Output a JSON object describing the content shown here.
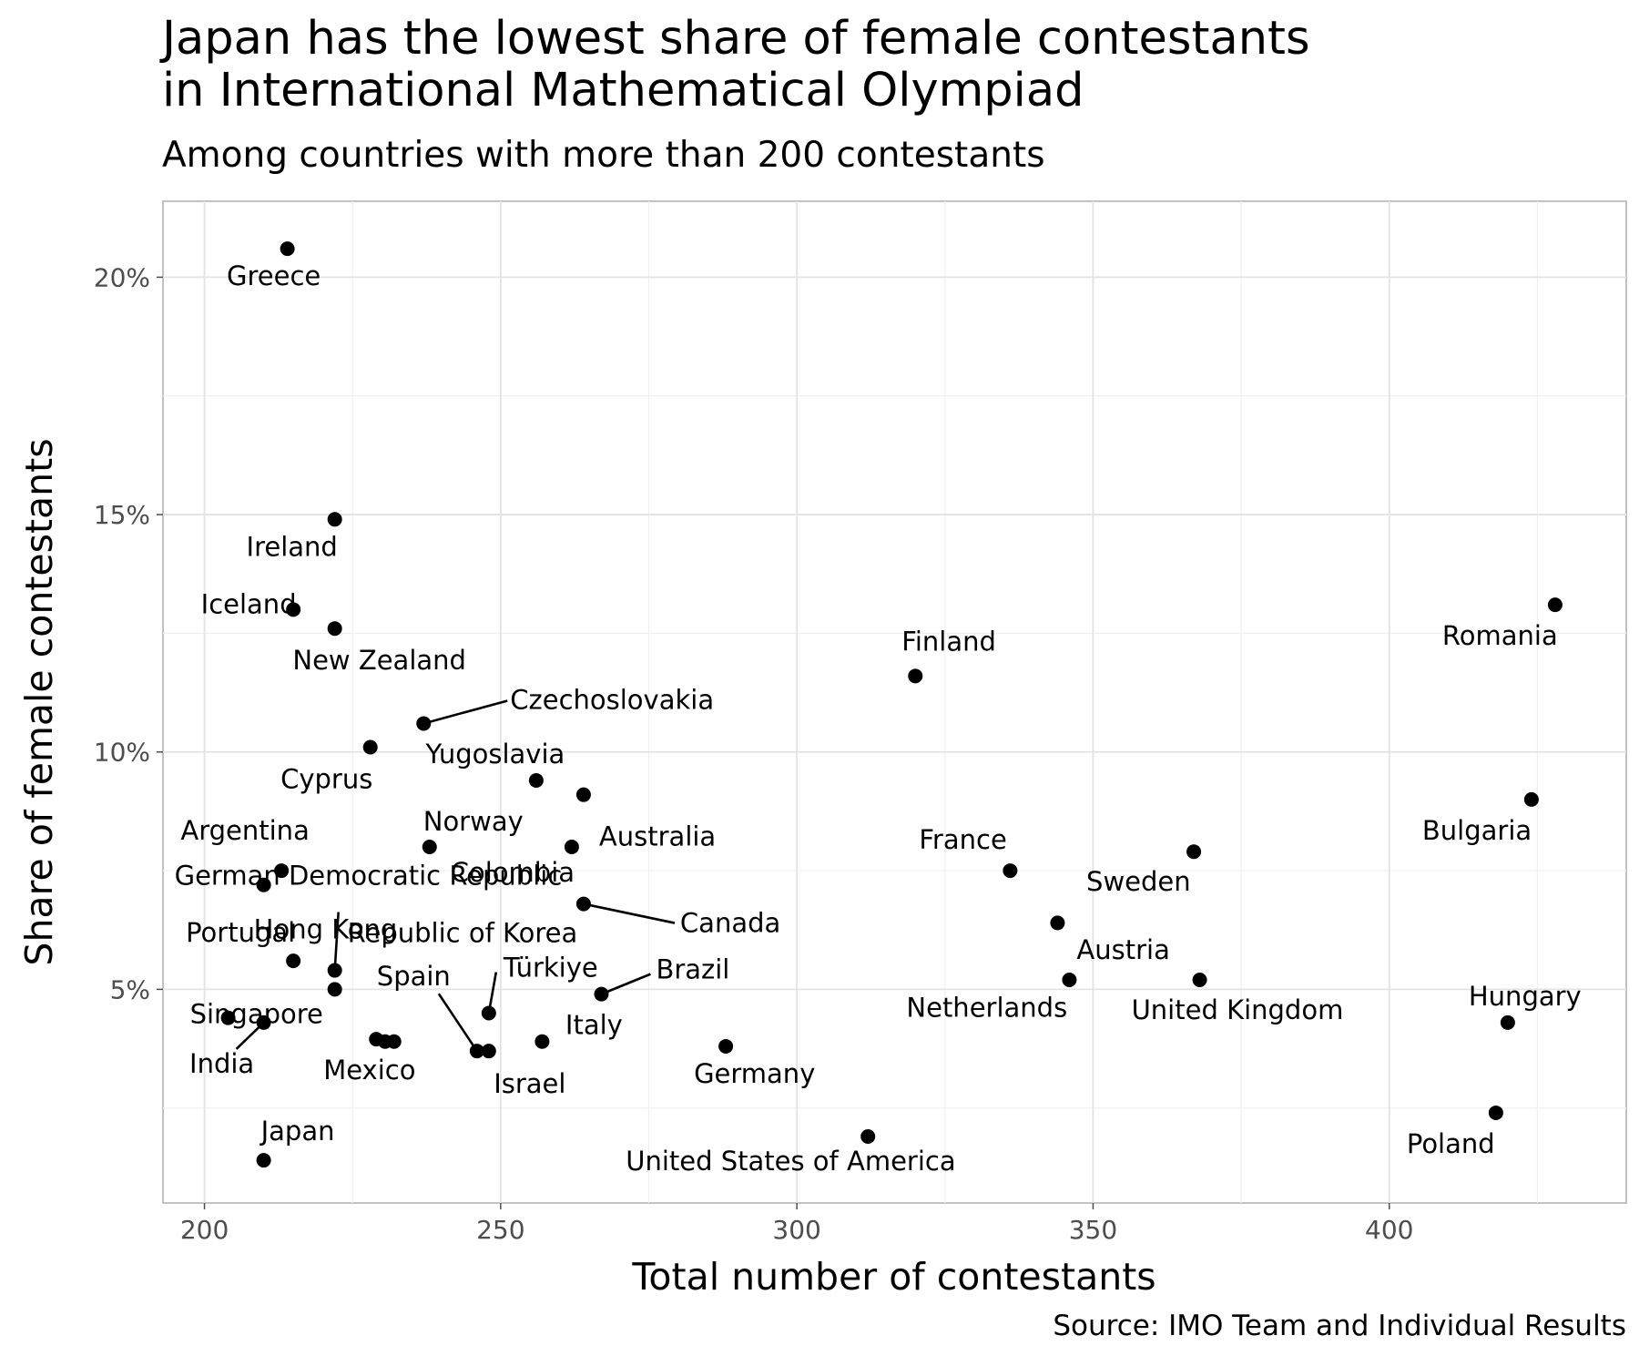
{
  "title_lines": [
    "Japan has the lowest share of female contestants",
    "in International Mathematical Olympiad"
  ],
  "subtitle": "Among countries with more than 200 contestants",
  "caption": "Source: IMO Team and Individual Results",
  "chart_data": {
    "type": "scatter",
    "title": "Japan has the lowest share of female contestants in International Mathematical Olympiad",
    "subtitle": "Among countries with more than 200 contestants",
    "xlabel": "Total number of contestants",
    "ylabel": "Share of female contestants",
    "xlim": [
      193,
      440
    ],
    "ylim": [
      0.5,
      21.6
    ],
    "x_ticks": [
      200,
      250,
      300,
      350,
      400
    ],
    "y_ticks": [
      5,
      10,
      15,
      20
    ],
    "y_tick_labels": [
      "5%",
      "10%",
      "15%",
      "20%"
    ],
    "grid": true,
    "point_color": "#000000",
    "points": [
      {
        "label": "Greece",
        "x": 214,
        "y": 20.6
      },
      {
        "label": "Ireland",
        "x": 222,
        "y": 14.9
      },
      {
        "label": "Iceland",
        "x": 215,
        "y": 13.0
      },
      {
        "label": "New Zealand",
        "x": 222,
        "y": 12.6
      },
      {
        "label": "Cyprus",
        "x": 228,
        "y": 10.1
      },
      {
        "label": "Czechoslovakia",
        "x": 237,
        "y": 10.6
      },
      {
        "label": "Yugoslavia",
        "x": 256,
        "y": 9.4
      },
      {
        "label": "Australia",
        "x": 264,
        "y": 9.1
      },
      {
        "label": "Norway",
        "x": 238,
        "y": 8.0
      },
      {
        "label": "Colombia",
        "x": 262,
        "y": 8.0
      },
      {
        "label": "Argentina",
        "x": 213,
        "y": 7.5
      },
      {
        "label": "German Democratic Republic",
        "x": 210,
        "y": 7.2
      },
      {
        "label": "Canada",
        "x": 264,
        "y": 6.8
      },
      {
        "label": "Republic of Korea",
        "x": 222,
        "y": 5.4
      },
      {
        "label": "Hong Kong",
        "x": 222,
        "y": 5.0
      },
      {
        "label": "Portugal",
        "x": 215,
        "y": 5.6
      },
      {
        "label": "Türkiye",
        "x": 248,
        "y": 4.5
      },
      {
        "label": "Brazil",
        "x": 267,
        "y": 4.9
      },
      {
        "label": "Spain",
        "x": 246,
        "y": 3.7
      },
      {
        "label": "Israel",
        "x": 248,
        "y": 3.7
      },
      {
        "label": "Italy",
        "x": 257,
        "y": 3.9
      },
      {
        "label": "Singapore",
        "x": 204,
        "y": 4.4
      },
      {
        "label": "India",
        "x": 210,
        "y": 4.3
      },
      {
        "label": "Mexico",
        "x": 229,
        "y": 3.95
      },
      {
        "label": "",
        "x": 230.5,
        "y": 3.9
      },
      {
        "label": "",
        "x": 232,
        "y": 3.9
      },
      {
        "label": "Japan",
        "x": 210,
        "y": 1.4
      },
      {
        "label": "Germany",
        "x": 288,
        "y": 3.8
      },
      {
        "label": "United States of America",
        "x": 312,
        "y": 1.9
      },
      {
        "label": "Finland",
        "x": 320,
        "y": 11.6
      },
      {
        "label": "France",
        "x": 336,
        "y": 7.5
      },
      {
        "label": "Netherlands",
        "x": 344,
        "y": 6.4
      },
      {
        "label": "Austria",
        "x": 346,
        "y": 5.2
      },
      {
        "label": "Sweden",
        "x": 367,
        "y": 7.9
      },
      {
        "label": "United Kingdom",
        "x": 368,
        "y": 5.2
      },
      {
        "label": "Romania",
        "x": 428,
        "y": 13.1
      },
      {
        "label": "Bulgaria",
        "x": 424,
        "y": 9.0
      },
      {
        "label": "Hungary",
        "x": 420,
        "y": 4.3
      },
      {
        "label": "Poland",
        "x": 418,
        "y": 2.4
      }
    ]
  }
}
